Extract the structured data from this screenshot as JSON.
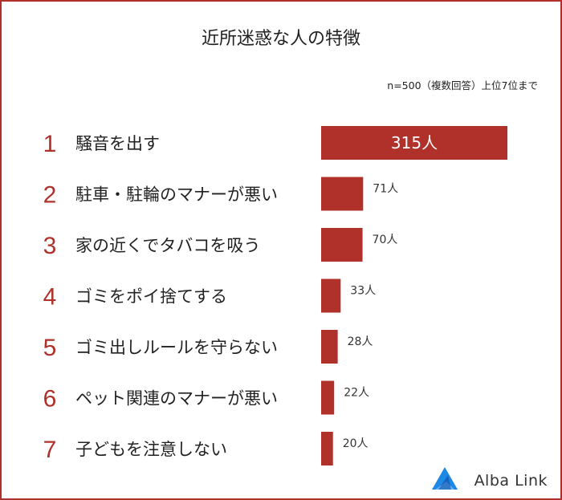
{
  "title": "近所迷惑な人の特徴",
  "note": "n=500（複数回答）上位7位まで",
  "brand": {
    "name": "Alba Link",
    "color": "#1e88e5"
  },
  "colors": {
    "accent": "#b0312a",
    "bar": "#b0312a"
  },
  "chart_data": {
    "type": "bar",
    "orientation": "horizontal",
    "categories": [
      "騒音を出す",
      "駐車・駐輪のマナーが悪い",
      "家の近くでタバコを吸う",
      "ゴミをポイ捨てする",
      "ゴミ出しルールを守らない",
      "ペット関連のマナーが悪い",
      "子どもを注意しない"
    ],
    "ranks": [
      "1",
      "2",
      "3",
      "4",
      "5",
      "6",
      "7"
    ],
    "values": [
      315,
      71,
      70,
      33,
      28,
      22,
      20
    ],
    "value_labels": [
      "315人",
      "71人",
      "70人",
      "33人",
      "28人",
      "22人",
      "20人"
    ],
    "unit": "人",
    "title": "近所迷惑な人の特徴",
    "xlabel": "",
    "ylabel": "",
    "xlim": [
      0,
      315
    ],
    "grid": false,
    "legend": "none"
  }
}
